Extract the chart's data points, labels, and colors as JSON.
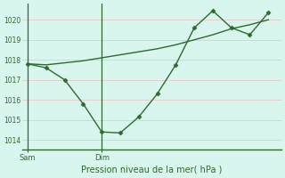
{
  "background_color": "#d8f5ee",
  "grid_color": "#e8c8c8",
  "line_color": "#2d6a2d",
  "ylim": [
    1013.5,
    1020.8
  ],
  "yticks": [
    1014,
    1015,
    1016,
    1017,
    1018,
    1019,
    1020
  ],
  "xlabel": "Pression niveau de la mer( hPa )",
  "xtick_positions": [
    0,
    4
  ],
  "xtick_labels": [
    "Sam",
    "Dim"
  ],
  "vline_positions": [
    0,
    4
  ],
  "xlim": [
    -0.3,
    13.7
  ],
  "line1_x": [
    0,
    1,
    2,
    3,
    4,
    5,
    6,
    7,
    8,
    9,
    10,
    11,
    12,
    13
  ],
  "line1_y": [
    1017.8,
    1017.6,
    1017.0,
    1015.8,
    1014.4,
    1014.35,
    1015.15,
    1016.3,
    1017.75,
    1019.6,
    1020.45,
    1019.6,
    1019.25,
    1020.35
  ],
  "line2_x": [
    0,
    1,
    2,
    3,
    4,
    5,
    6,
    7,
    8,
    9,
    10,
    11,
    12,
    13
  ],
  "line2_y": [
    1017.8,
    1017.75,
    1017.85,
    1017.95,
    1018.1,
    1018.25,
    1018.4,
    1018.55,
    1018.75,
    1019.0,
    1019.25,
    1019.55,
    1019.75,
    1020.0
  ]
}
